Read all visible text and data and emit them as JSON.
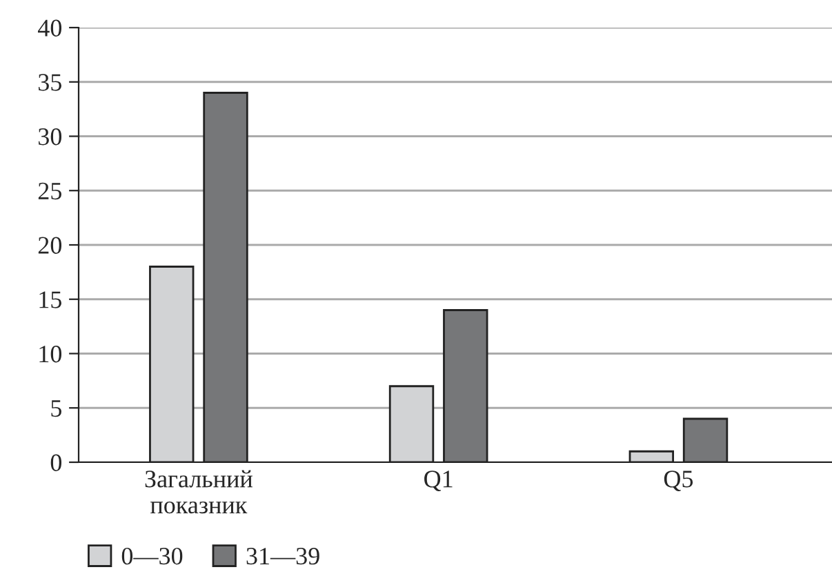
{
  "chart_data": {
    "type": "bar",
    "categories": [
      "Загальний\nпоказник",
      "Q1",
      "Q5"
    ],
    "series": [
      {
        "name": "0—30",
        "color": "#d2d3d5",
        "values": [
          18,
          7,
          1
        ]
      },
      {
        "name": "31—39",
        "color": "#767779",
        "values": [
          34,
          14,
          4
        ]
      }
    ],
    "ylim": [
      0,
      40
    ],
    "yticks": [
      0,
      5,
      10,
      15,
      20,
      25,
      30,
      35,
      40
    ],
    "grid": "y",
    "legend": "bottom left"
  }
}
